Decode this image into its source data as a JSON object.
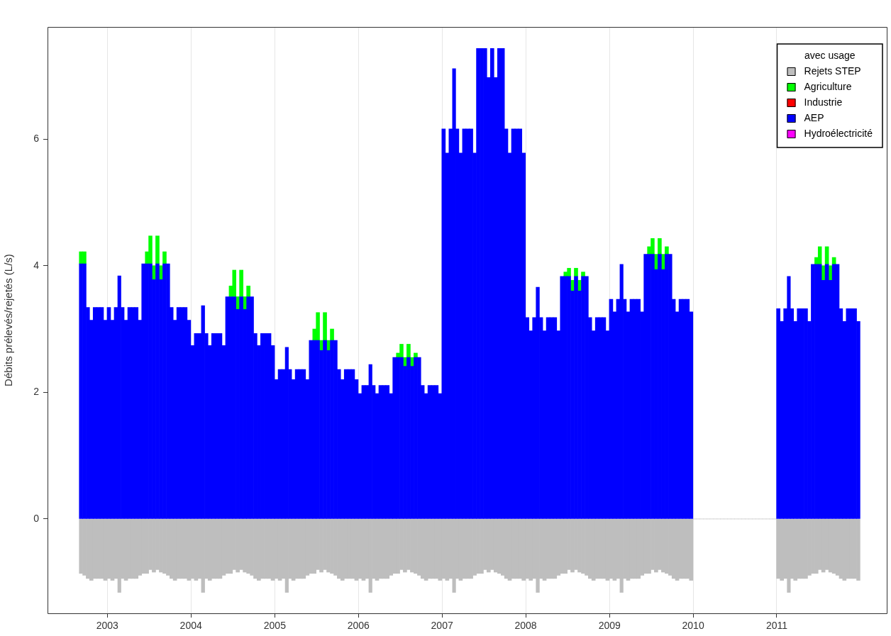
{
  "chart_data": {
    "type": "bar",
    "ylabel": "Débits prélevés/rejetés (L/s)",
    "stacked": true,
    "grid": "x",
    "legend": "top right",
    "legend_title": "avec usage",
    "xlim": [
      "2002-04-15",
      "2012-04-25"
    ],
    "ylim": [
      -1.49,
      7.77
    ],
    "xticks": [
      "2003",
      "2004",
      "2005",
      "2006",
      "2007",
      "2008",
      "2009",
      "2010",
      "2011"
    ],
    "yticks": [
      0,
      2,
      4,
      6
    ],
    "x": [
      "2002-09-08",
      "2002-09-23",
      "2002-10-08",
      "2002-10-23",
      "2002-11-08",
      "2002-11-23",
      "2002-12-08",
      "2002-12-23",
      "2003-01-08",
      "2003-01-23",
      "2003-02-08",
      "2003-02-23",
      "2003-03-08",
      "2003-03-23",
      "2003-04-08",
      "2003-04-23",
      "2003-05-08",
      "2003-05-23",
      "2003-06-08",
      "2003-06-23",
      "2003-07-08",
      "2003-07-23",
      "2003-08-08",
      "2003-08-23",
      "2003-09-08",
      "2003-09-23",
      "2003-10-08",
      "2003-10-23",
      "2003-11-08",
      "2003-11-23",
      "2003-12-08",
      "2003-12-23",
      "2004-01-08",
      "2004-01-23",
      "2004-02-08",
      "2004-02-23",
      "2004-03-08",
      "2004-03-23",
      "2004-04-08",
      "2004-04-23",
      "2004-05-08",
      "2004-05-23",
      "2004-06-08",
      "2004-06-23",
      "2004-07-08",
      "2004-07-23",
      "2004-08-08",
      "2004-08-23",
      "2004-09-08",
      "2004-09-23",
      "2004-10-08",
      "2004-10-23",
      "2004-11-08",
      "2004-11-23",
      "2004-12-08",
      "2004-12-23",
      "2005-01-08",
      "2005-01-23",
      "2005-02-08",
      "2005-02-23",
      "2005-03-08",
      "2005-03-23",
      "2005-04-08",
      "2005-04-23",
      "2005-05-08",
      "2005-05-23",
      "2005-06-08",
      "2005-06-23",
      "2005-07-08",
      "2005-07-23",
      "2005-08-08",
      "2005-08-23",
      "2005-09-08",
      "2005-09-23",
      "2005-10-08",
      "2005-10-23",
      "2005-11-08",
      "2005-11-23",
      "2005-12-08",
      "2005-12-23",
      "2006-01-08",
      "2006-01-23",
      "2006-02-08",
      "2006-02-23",
      "2006-03-08",
      "2006-03-23",
      "2006-04-08",
      "2006-04-23",
      "2006-05-08",
      "2006-05-23",
      "2006-06-08",
      "2006-06-23",
      "2006-07-08",
      "2006-07-23",
      "2006-08-08",
      "2006-08-23",
      "2006-09-08",
      "2006-09-23",
      "2006-10-08",
      "2006-10-23",
      "2006-11-08",
      "2006-11-23",
      "2006-12-08",
      "2006-12-23",
      "2007-01-08",
      "2007-01-23",
      "2007-02-08",
      "2007-02-23",
      "2007-03-08",
      "2007-03-23",
      "2007-04-08",
      "2007-04-23",
      "2007-05-08",
      "2007-05-23",
      "2007-06-08",
      "2007-06-23",
      "2007-07-08",
      "2007-07-23",
      "2007-08-08",
      "2007-08-23",
      "2007-09-08",
      "2007-09-23",
      "2007-10-08",
      "2007-10-23",
      "2007-11-08",
      "2007-11-23",
      "2007-12-08",
      "2007-12-23",
      "2008-01-08",
      "2008-01-23",
      "2008-02-08",
      "2008-02-23",
      "2008-03-08",
      "2008-03-23",
      "2008-04-08",
      "2008-04-23",
      "2008-05-08",
      "2008-05-23",
      "2008-06-08",
      "2008-06-23",
      "2008-07-08",
      "2008-07-23",
      "2008-08-08",
      "2008-08-23",
      "2008-09-08",
      "2008-09-23",
      "2008-10-08",
      "2008-10-23",
      "2008-11-08",
      "2008-11-23",
      "2008-12-08",
      "2008-12-23",
      "2009-01-08",
      "2009-01-23",
      "2009-02-08",
      "2009-02-23",
      "2009-03-08",
      "2009-03-23",
      "2009-04-08",
      "2009-04-23",
      "2009-05-08",
      "2009-05-23",
      "2009-06-08",
      "2009-06-23",
      "2009-07-08",
      "2009-07-23",
      "2009-08-08",
      "2009-08-23",
      "2009-09-08",
      "2009-09-23",
      "2009-10-08",
      "2009-10-23",
      "2009-11-08",
      "2009-11-23",
      "2009-12-08",
      "2009-12-23",
      "2010-01-08",
      "2010-01-23",
      "2010-02-08",
      "2010-02-23",
      "2010-03-08",
      "2010-03-23",
      "2010-04-08",
      "2010-04-23",
      "2010-05-08",
      "2010-05-23",
      "2010-06-08",
      "2010-06-23",
      "2010-07-08",
      "2010-07-23",
      "2010-08-08",
      "2010-08-23",
      "2010-09-08",
      "2010-09-23",
      "2010-10-08",
      "2010-10-23",
      "2010-11-08",
      "2010-11-23",
      "2010-12-08",
      "2010-12-23",
      "2011-01-08",
      "2011-01-23",
      "2011-02-08",
      "2011-02-23",
      "2011-03-08",
      "2011-03-23",
      "2011-04-08",
      "2011-04-23",
      "2011-05-08",
      "2011-05-23",
      "2011-06-08",
      "2011-06-23",
      "2011-07-08",
      "2011-07-23",
      "2011-08-08",
      "2011-08-23",
      "2011-09-08",
      "2011-09-23",
      "2011-10-08",
      "2011-10-23",
      "2011-11-08",
      "2011-11-23",
      "2011-12-08",
      "2011-12-23"
    ],
    "series": [
      {
        "name": "Hydroélectricité",
        "color": "#ff00ff",
        "values": [
          null,
          null,
          null,
          null,
          null,
          null,
          null,
          null,
          null,
          null,
          null,
          null,
          null,
          null,
          null,
          null,
          null,
          null,
          null,
          null,
          null,
          null,
          null,
          null,
          null,
          null,
          null,
          null,
          null,
          null,
          null,
          null,
          null,
          null,
          null,
          null,
          null,
          null,
          null,
          null,
          null,
          null,
          null,
          null,
          null,
          null,
          null,
          null,
          null,
          null,
          null,
          null,
          null,
          null,
          null,
          null,
          null,
          null,
          null,
          null,
          null,
          null,
          null,
          null,
          null,
          null,
          null,
          null,
          null,
          null,
          null,
          null,
          null,
          null,
          null,
          null,
          null,
          null,
          null,
          null,
          null,
          null,
          null,
          null,
          null,
          null,
          null,
          null,
          null,
          null,
          null,
          null,
          null,
          null,
          null,
          null,
          null,
          null,
          null,
          null,
          null,
          null,
          null,
          null,
          null,
          null,
          null,
          null,
          null,
          null,
          null,
          null,
          null,
          null,
          null,
          null,
          null,
          null,
          null,
          null,
          null,
          null,
          null,
          null,
          null,
          null,
          null,
          null,
          null,
          null,
          null,
          null,
          null,
          null,
          null,
          null,
          null,
          null,
          null,
          null,
          null,
          null,
          null,
          null,
          null,
          null,
          null,
          null,
          null,
          null,
          null,
          null,
          null,
          null,
          null,
          null,
          null,
          null,
          null,
          null,
          null,
          null,
          null,
          null,
          null,
          null,
          null,
          null,
          null,
          null,
          null,
          null,
          null,
          null,
          null,
          null,
          null,
          null,
          null,
          null,
          null,
          null,
          null,
          null,
          null,
          null,
          null,
          null,
          null,
          null,
          null,
          null,
          null,
          null,
          null,
          null,
          null,
          null,
          null,
          null,
          null,
          null,
          null,
          null,
          null,
          null,
          null,
          null,
          null,
          null,
          null,
          null,
          null,
          null,
          null,
          null,
          null,
          null,
          null,
          null,
          null,
          null,
          null,
          null
        ]
      },
      {
        "name": "AEP",
        "color": "#0000ff",
        "values": [
          4.03,
          4.03,
          3.34,
          3.14,
          3.34,
          3.34,
          3.34,
          3.14,
          3.34,
          3.14,
          3.34,
          3.84,
          3.34,
          3.14,
          3.34,
          3.34,
          3.34,
          3.14,
          4.03,
          4.03,
          4.03,
          3.78,
          4.03,
          3.78,
          4.03,
          4.03,
          3.34,
          3.14,
          3.34,
          3.34,
          3.34,
          3.14,
          2.74,
          2.93,
          2.93,
          3.37,
          2.93,
          2.74,
          2.93,
          2.93,
          2.93,
          2.74,
          3.51,
          3.51,
          3.51,
          3.31,
          3.51,
          3.31,
          3.51,
          3.51,
          2.93,
          2.74,
          2.93,
          2.93,
          2.93,
          2.74,
          2.2,
          2.36,
          2.36,
          2.71,
          2.36,
          2.2,
          2.36,
          2.36,
          2.36,
          2.2,
          2.82,
          2.82,
          2.82,
          2.66,
          2.82,
          2.66,
          2.82,
          2.82,
          2.36,
          2.2,
          2.36,
          2.36,
          2.36,
          2.2,
          1.98,
          2.11,
          2.11,
          2.44,
          2.11,
          1.98,
          2.11,
          2.11,
          2.11,
          1.98,
          2.55,
          2.55,
          2.55,
          2.41,
          2.55,
          2.41,
          2.55,
          2.55,
          2.11,
          1.98,
          2.11,
          2.11,
          2.11,
          1.98,
          6.16,
          5.78,
          6.16,
          7.11,
          6.16,
          5.78,
          6.16,
          6.16,
          6.16,
          5.78,
          7.43,
          7.43,
          7.43,
          6.97,
          7.43,
          6.97,
          7.43,
          7.43,
          6.16,
          5.78,
          6.16,
          6.16,
          6.16,
          5.78,
          3.18,
          2.97,
          3.18,
          3.66,
          3.18,
          2.97,
          3.18,
          3.18,
          3.18,
          2.97,
          3.83,
          3.83,
          3.83,
          3.6,
          3.83,
          3.6,
          3.83,
          3.83,
          3.18,
          2.97,
          3.18,
          3.18,
          3.18,
          2.97,
          3.47,
          3.27,
          3.47,
          4.02,
          3.47,
          3.27,
          3.47,
          3.47,
          3.47,
          3.27,
          4.18,
          4.18,
          4.18,
          3.94,
          4.18,
          3.94,
          4.18,
          4.18,
          3.47,
          3.27,
          3.47,
          3.47,
          3.47,
          3.27,
          null,
          null,
          null,
          null,
          null,
          null,
          null,
          null,
          null,
          null,
          null,
          null,
          null,
          null,
          null,
          null,
          null,
          null,
          null,
          null,
          null,
          null,
          null,
          null,
          3.32,
          3.12,
          3.32,
          3.83,
          3.32,
          3.12,
          3.32,
          3.32,
          3.32,
          3.12,
          4.02,
          4.02,
          4.02,
          3.77,
          4.02,
          3.77,
          4.02,
          4.02,
          3.32,
          3.12,
          3.32,
          3.32,
          3.32,
          3.12
        ]
      },
      {
        "name": "Industrie",
        "color": "#ff0000",
        "values": [
          null,
          null,
          null,
          null,
          null,
          null,
          null,
          null,
          null,
          null,
          null,
          null,
          null,
          null,
          null,
          null,
          null,
          null,
          null,
          null,
          null,
          null,
          null,
          null,
          null,
          null,
          null,
          null,
          null,
          null,
          null,
          null,
          null,
          null,
          null,
          null,
          null,
          null,
          null,
          null,
          null,
          null,
          null,
          null,
          null,
          null,
          null,
          null,
          null,
          null,
          null,
          null,
          null,
          null,
          null,
          null,
          null,
          null,
          null,
          null,
          null,
          null,
          null,
          null,
          null,
          null,
          null,
          null,
          null,
          null,
          null,
          null,
          null,
          null,
          null,
          null,
          null,
          null,
          null,
          null,
          null,
          null,
          null,
          null,
          null,
          null,
          null,
          null,
          null,
          null,
          null,
          null,
          null,
          null,
          null,
          null,
          null,
          null,
          null,
          null,
          null,
          null,
          null,
          null,
          null,
          null,
          null,
          null,
          null,
          null,
          null,
          null,
          null,
          null,
          null,
          null,
          null,
          null,
          null,
          null,
          null,
          null,
          null,
          null,
          null,
          null,
          null,
          null,
          null,
          null,
          null,
          null,
          null,
          null,
          null,
          null,
          null,
          null,
          null,
          null,
          null,
          null,
          null,
          null,
          null,
          null,
          null,
          null,
          null,
          null,
          null,
          null,
          null,
          null,
          null,
          null,
          null,
          null,
          null,
          null,
          null,
          null,
          null,
          null,
          null,
          null,
          null,
          null,
          null,
          null,
          null,
          null,
          null,
          null,
          null,
          null,
          null,
          null,
          null,
          null,
          null,
          null,
          null,
          null,
          null,
          null,
          null,
          null,
          null,
          null,
          null,
          null,
          null,
          null,
          null,
          null,
          null,
          null,
          null,
          null,
          null,
          null,
          null,
          null,
          null,
          null,
          null,
          null,
          null,
          null,
          null,
          null,
          null,
          null,
          null,
          null,
          null,
          null,
          null,
          null,
          null,
          null,
          null,
          null
        ]
      },
      {
        "name": "Agriculture",
        "color": "#00ff00",
        "values": [
          0.19,
          0.19,
          null,
          null,
          null,
          null,
          null,
          null,
          null,
          null,
          null,
          null,
          null,
          null,
          null,
          null,
          null,
          null,
          null,
          0.19,
          0.44,
          0.22,
          0.44,
          0.22,
          0.19,
          null,
          null,
          null,
          null,
          null,
          null,
          null,
          null,
          null,
          null,
          null,
          null,
          null,
          null,
          null,
          null,
          null,
          null,
          0.17,
          0.42,
          0.2,
          0.42,
          0.2,
          0.17,
          null,
          null,
          null,
          null,
          null,
          null,
          null,
          null,
          null,
          null,
          null,
          null,
          null,
          null,
          null,
          null,
          null,
          null,
          0.18,
          0.44,
          0.16,
          0.44,
          0.16,
          0.18,
          null,
          null,
          null,
          null,
          null,
          null,
          null,
          null,
          null,
          null,
          null,
          null,
          null,
          null,
          null,
          null,
          null,
          null,
          0.07,
          0.21,
          0.14,
          0.21,
          0.14,
          0.07,
          null,
          null,
          null,
          null,
          null,
          null,
          null,
          null,
          null,
          null,
          null,
          null,
          null,
          null,
          null,
          null,
          null,
          null,
          null,
          null,
          null,
          null,
          null,
          null,
          null,
          null,
          null,
          null,
          null,
          null,
          null,
          null,
          null,
          null,
          null,
          null,
          null,
          null,
          null,
          null,
          null,
          null,
          0.07,
          0.13,
          0.17,
          0.13,
          0.17,
          0.07,
          null,
          null,
          null,
          null,
          null,
          null,
          null,
          null,
          null,
          null,
          null,
          null,
          null,
          null,
          null,
          null,
          null,
          null,
          0.12,
          0.25,
          0.24,
          0.25,
          0.24,
          0.12,
          null,
          null,
          null,
          null,
          null,
          null,
          null,
          null,
          null,
          null,
          null,
          null,
          null,
          null,
          null,
          null,
          null,
          null,
          null,
          null,
          null,
          null,
          null,
          null,
          null,
          null,
          null,
          null,
          null,
          null,
          null,
          null,
          null,
          null,
          null,
          null,
          null,
          null,
          null,
          null,
          null,
          null,
          0.11,
          0.28,
          0.23,
          0.28,
          0.23,
          0.11,
          null,
          null,
          null,
          null,
          null,
          null,
          null
        ]
      },
      {
        "name": "Rejets STEP",
        "color": "#bebebe",
        "values": [
          -0.86,
          -0.89,
          -0.94,
          -0.97,
          -0.94,
          -0.94,
          -0.94,
          -0.97,
          -0.94,
          -0.97,
          -0.94,
          -1.16,
          -0.94,
          -0.97,
          -0.94,
          -0.94,
          -0.94,
          -0.89,
          -0.86,
          -0.86,
          -0.8,
          -0.84,
          -0.8,
          -0.84,
          -0.86,
          -0.89,
          -0.94,
          -0.97,
          -0.94,
          -0.94,
          -0.94,
          -0.97,
          -0.94,
          -0.97,
          -0.94,
          -1.16,
          -0.94,
          -0.97,
          -0.94,
          -0.94,
          -0.94,
          -0.89,
          -0.86,
          -0.86,
          -0.8,
          -0.84,
          -0.8,
          -0.84,
          -0.86,
          -0.89,
          -0.94,
          -0.97,
          -0.94,
          -0.94,
          -0.94,
          -0.97,
          -0.94,
          -0.97,
          -0.94,
          -1.16,
          -0.94,
          -0.97,
          -0.94,
          -0.94,
          -0.94,
          -0.89,
          -0.86,
          -0.86,
          -0.8,
          -0.84,
          -0.8,
          -0.84,
          -0.86,
          -0.89,
          -0.94,
          -0.97,
          -0.94,
          -0.94,
          -0.94,
          -0.97,
          -0.94,
          -0.97,
          -0.94,
          -1.16,
          -0.94,
          -0.97,
          -0.94,
          -0.94,
          -0.94,
          -0.89,
          -0.86,
          -0.86,
          -0.8,
          -0.84,
          -0.8,
          -0.84,
          -0.86,
          -0.89,
          -0.94,
          -0.97,
          -0.94,
          -0.94,
          -0.94,
          -0.97,
          -0.94,
          -0.97,
          -0.94,
          -1.16,
          -0.94,
          -0.97,
          -0.94,
          -0.94,
          -0.94,
          -0.89,
          -0.86,
          -0.86,
          -0.8,
          -0.84,
          -0.8,
          -0.84,
          -0.86,
          -0.89,
          -0.94,
          -0.97,
          -0.94,
          -0.94,
          -0.94,
          -0.97,
          -0.94,
          -0.97,
          -0.94,
          -1.16,
          -0.94,
          -0.97,
          -0.94,
          -0.94,
          -0.94,
          -0.89,
          -0.86,
          -0.86,
          -0.8,
          -0.84,
          -0.8,
          -0.84,
          -0.86,
          -0.89,
          -0.94,
          -0.97,
          -0.94,
          -0.94,
          -0.94,
          -0.97,
          -0.94,
          -0.97,
          -0.94,
          -1.16,
          -0.94,
          -0.97,
          -0.94,
          -0.94,
          -0.94,
          -0.89,
          -0.86,
          -0.86,
          -0.8,
          -0.84,
          -0.8,
          -0.84,
          -0.86,
          -0.89,
          -0.94,
          -0.97,
          -0.94,
          -0.94,
          -0.94,
          -0.97,
          0,
          0,
          0,
          0,
          0,
          0,
          0,
          0,
          0,
          0,
          0,
          0,
          0,
          0,
          0,
          0,
          0,
          0,
          0,
          0,
          0,
          0,
          0,
          0,
          -0.94,
          -0.97,
          -0.94,
          -1.16,
          -0.94,
          -0.97,
          -0.94,
          -0.94,
          -0.94,
          -0.89,
          -0.86,
          -0.86,
          -0.8,
          -0.84,
          -0.8,
          -0.84,
          -0.86,
          -0.89,
          -0.94,
          -0.97,
          -0.94,
          -0.94,
          -0.94,
          -0.97
        ]
      }
    ]
  }
}
